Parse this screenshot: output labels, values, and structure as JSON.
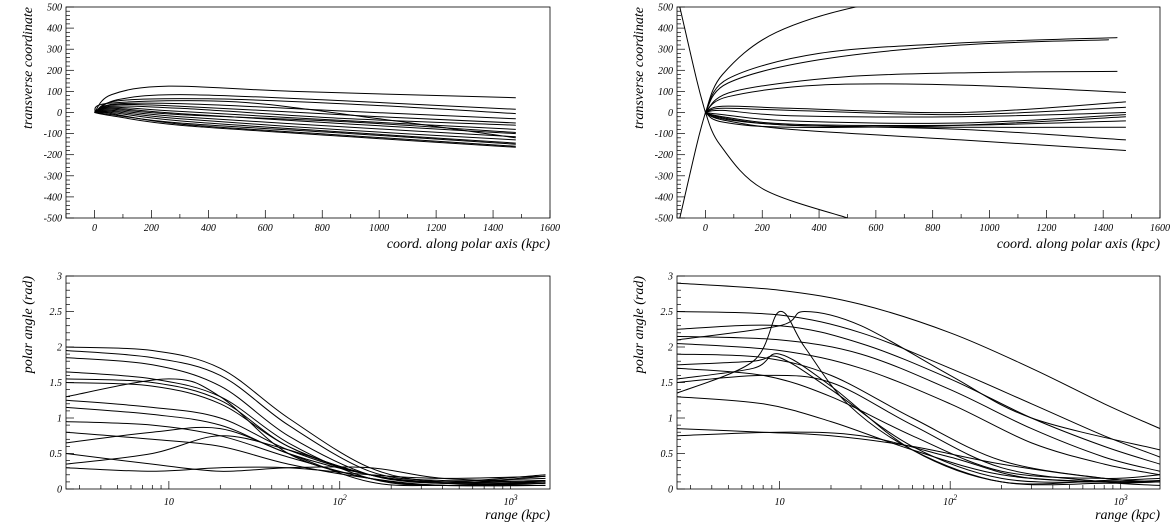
{
  "chart_data": [
    {
      "type": "line",
      "xlabel": "coord. along polar axis (kpc)",
      "ylabel": "transverse coordinate",
      "xlim": [
        -100,
        1600
      ],
      "ylim": [
        -500,
        500
      ],
      "x_ticks": [
        "0",
        "200",
        "400",
        "600",
        "800",
        "1000",
        "1200",
        "1400",
        "1600"
      ],
      "y_ticks": [
        "-500",
        "-400",
        "-300",
        "-200",
        "-100",
        "0",
        "100",
        "200",
        "300",
        "400",
        "500"
      ],
      "series": [
        {
          "x": [
            0,
            60,
            260,
            700,
            1480
          ],
          "y": [
            0,
            85,
            125,
            100,
            70
          ]
        },
        {
          "x": [
            0,
            80,
            300,
            800,
            1480
          ],
          "y": [
            0,
            60,
            85,
            60,
            15
          ]
        },
        {
          "x": [
            0,
            80,
            400,
            900,
            1480
          ],
          "y": [
            0,
            55,
            65,
            40,
            -5
          ]
        },
        {
          "x": [
            0,
            70,
            350,
            900,
            1480
          ],
          "y": [
            0,
            40,
            40,
            5,
            -30
          ]
        },
        {
          "x": [
            0,
            60,
            300,
            900,
            1480
          ],
          "y": [
            0,
            30,
            20,
            -30,
            -60
          ]
        },
        {
          "x": [
            0,
            60,
            300,
            900,
            1480
          ],
          "y": [
            0,
            25,
            5,
            -40,
            -80
          ]
        },
        {
          "x": [
            0,
            60,
            300,
            900,
            1480
          ],
          "y": [
            0,
            20,
            -5,
            -55,
            -100
          ]
        },
        {
          "x": [
            0,
            60,
            300,
            900,
            1480
          ],
          "y": [
            0,
            10,
            -20,
            -70,
            -115
          ]
        },
        {
          "x": [
            0,
            60,
            300,
            900,
            1480
          ],
          "y": [
            0,
            5,
            -30,
            -85,
            -130
          ]
        },
        {
          "x": [
            0,
            60,
            300,
            900,
            1480
          ],
          "y": [
            0,
            0,
            -40,
            -95,
            -145
          ]
        },
        {
          "x": [
            0,
            60,
            300,
            900,
            1480
          ],
          "y": [
            0,
            -5,
            -55,
            -110,
            -160
          ]
        },
        {
          "x": [
            0,
            60,
            300,
            900,
            1480
          ],
          "y": [
            0,
            -10,
            -50,
            -100,
            -150
          ]
        },
        {
          "x": [
            0,
            60,
            300,
            900,
            1480
          ],
          "y": [
            0,
            15,
            -10,
            -45,
            -95
          ]
        },
        {
          "x": [
            0,
            60,
            300,
            1000,
            1480
          ],
          "y": [
            0,
            35,
            30,
            -20,
            -50
          ]
        },
        {
          "x": [
            0,
            60,
            500,
            1000,
            1480
          ],
          "y": [
            0,
            45,
            50,
            -30,
            -120
          ]
        },
        {
          "x": [
            0,
            60,
            300,
            900,
            1480
          ],
          "y": [
            0,
            -15,
            -60,
            -115,
            -165
          ]
        }
      ]
    },
    {
      "type": "line",
      "xlabel": "coord. along polar axis (kpc)",
      "ylabel": "transverse coordinate",
      "xlim": [
        -100,
        1600
      ],
      "ylim": [
        -500,
        500
      ],
      "x_ticks": [
        "0",
        "200",
        "400",
        "600",
        "800",
        "1000",
        "1200",
        "1400",
        "1600"
      ],
      "y_ticks": [
        "-500",
        "-400",
        "-300",
        "-200",
        "-100",
        "0",
        "100",
        "200",
        "300",
        "400",
        "500"
      ],
      "series": [
        {
          "x": [
            0,
            -30,
            -90
          ],
          "y": [
            0,
            150,
            500
          ]
        },
        {
          "x": [
            0,
            -30,
            -90
          ],
          "y": [
            0,
            -150,
            -500
          ]
        },
        {
          "x": [
            0,
            60,
            250,
            600,
            1100
          ],
          "y": [
            0,
            180,
            380,
            520,
            600
          ]
        },
        {
          "x": [
            0,
            80,
            400,
            900,
            1450
          ],
          "y": [
            0,
            160,
            280,
            330,
            355
          ]
        },
        {
          "x": [
            0,
            80,
            400,
            900,
            1420
          ],
          "y": [
            0,
            140,
            250,
            320,
            345
          ]
        },
        {
          "x": [
            0,
            100,
            500,
            1000,
            1450
          ],
          "y": [
            0,
            100,
            170,
            190,
            195
          ]
        },
        {
          "x": [
            0,
            80,
            400,
            900,
            1480
          ],
          "y": [
            0,
            75,
            130,
            130,
            95
          ]
        },
        {
          "x": [
            0,
            60,
            300,
            900,
            1480
          ],
          "y": [
            0,
            30,
            20,
            0,
            50
          ]
        },
        {
          "x": [
            0,
            60,
            300,
            900,
            1480
          ],
          "y": [
            0,
            20,
            10,
            -10,
            25
          ]
        },
        {
          "x": [
            0,
            60,
            300,
            900,
            1480
          ],
          "y": [
            0,
            10,
            -15,
            -20,
            0
          ]
        },
        {
          "x": [
            0,
            60,
            300,
            900,
            1480
          ],
          "y": [
            0,
            -10,
            -40,
            -50,
            -10
          ]
        },
        {
          "x": [
            0,
            60,
            300,
            900,
            1480
          ],
          "y": [
            0,
            -20,
            -55,
            -60,
            -40
          ]
        },
        {
          "x": [
            0,
            60,
            300,
            900,
            1480
          ],
          "y": [
            0,
            -25,
            -60,
            -70,
            -70
          ]
        },
        {
          "x": [
            0,
            60,
            300,
            900,
            1480
          ],
          "y": [
            0,
            -30,
            -60,
            -80,
            -130
          ]
        },
        {
          "x": [
            0,
            60,
            300,
            900,
            1480
          ],
          "y": [
            0,
            -35,
            -80,
            -130,
            -180
          ]
        },
        {
          "x": [
            0,
            60,
            300,
            900,
            1480
          ],
          "y": [
            0,
            -45,
            -70,
            -60,
            -20
          ]
        },
        {
          "x": [
            0,
            50,
            200,
            500
          ],
          "y": [
            0,
            -150,
            -360,
            -500
          ]
        }
      ]
    },
    {
      "type": "line",
      "xlabel": "range (kpc)",
      "ylabel": "polar angle (rad)",
      "xscale": "log",
      "xlim": [
        2.5,
        1700
      ],
      "ylim": [
        0,
        3
      ],
      "x_ticks": [
        "10",
        "10^2",
        "10^3"
      ],
      "y_ticks": [
        "0",
        "0.5",
        "1",
        "1.5",
        "2",
        "2.5",
        "3"
      ],
      "series": [
        {
          "x": [
            2.5,
            8,
            20,
            50,
            150,
            400,
            1600
          ],
          "y": [
            2.0,
            1.95,
            1.7,
            1.0,
            0.3,
            0.1,
            0.1
          ]
        },
        {
          "x": [
            2.5,
            8,
            20,
            50,
            150,
            400,
            1600
          ],
          "y": [
            1.95,
            1.85,
            1.6,
            0.9,
            0.25,
            0.12,
            0.15
          ]
        },
        {
          "x": [
            2.5,
            8,
            20,
            50,
            150,
            400,
            1600
          ],
          "y": [
            1.85,
            1.75,
            1.45,
            0.75,
            0.2,
            0.1,
            0.12
          ]
        },
        {
          "x": [
            2.5,
            8,
            20,
            50,
            150,
            400,
            1600
          ],
          "y": [
            1.65,
            1.55,
            1.3,
            0.65,
            0.15,
            0.05,
            0.1
          ]
        },
        {
          "x": [
            2.5,
            8,
            20,
            50,
            150,
            400,
            1600
          ],
          "y": [
            1.55,
            1.5,
            1.25,
            0.6,
            0.2,
            0.08,
            0.18
          ]
        },
        {
          "x": [
            2.5,
            8,
            20,
            50,
            150,
            400,
            1600
          ],
          "y": [
            1.5,
            1.45,
            1.2,
            0.6,
            0.2,
            0.1,
            0.2
          ]
        },
        {
          "x": [
            2.5,
            10,
            20,
            50,
            150,
            400,
            1600
          ],
          "y": [
            1.3,
            1.55,
            1.3,
            0.5,
            0.15,
            0.05,
            0.1
          ]
        },
        {
          "x": [
            2.5,
            8,
            20,
            50,
            150,
            400,
            1600
          ],
          "y": [
            1.25,
            1.15,
            1.0,
            0.55,
            0.2,
            0.1,
            0.12
          ]
        },
        {
          "x": [
            2.5,
            8,
            20,
            50,
            150,
            400,
            1600
          ],
          "y": [
            1.15,
            1.05,
            0.9,
            0.5,
            0.2,
            0.08,
            0.1
          ]
        },
        {
          "x": [
            2.5,
            8,
            20,
            50,
            150,
            400,
            1600
          ],
          "y": [
            0.95,
            0.9,
            0.75,
            0.45,
            0.15,
            0.05,
            0.08
          ]
        },
        {
          "x": [
            2.5,
            8,
            20,
            50,
            150,
            400,
            1600
          ],
          "y": [
            0.8,
            0.7,
            0.6,
            0.35,
            0.15,
            0.05,
            0.05
          ]
        },
        {
          "x": [
            2.5,
            8,
            20,
            50,
            150,
            400,
            1600
          ],
          "y": [
            0.35,
            0.5,
            0.75,
            0.55,
            0.2,
            0.08,
            0.05
          ]
        },
        {
          "x": [
            2.5,
            8,
            20,
            50,
            150,
            400,
            1600
          ],
          "y": [
            0.3,
            0.25,
            0.3,
            0.3,
            0.2,
            0.15,
            0.18
          ]
        },
        {
          "x": [
            2.5,
            8,
            20,
            50,
            150,
            400,
            1600
          ],
          "y": [
            0.5,
            0.35,
            0.25,
            0.3,
            0.3,
            0.15,
            0.1
          ]
        },
        {
          "x": [
            2.5,
            8,
            20,
            50,
            150,
            400,
            1600
          ],
          "y": [
            0.65,
            0.8,
            0.85,
            0.5,
            0.1,
            0.05,
            0.08
          ]
        }
      ]
    },
    {
      "type": "line",
      "xlabel": "range (kpc)",
      "ylabel": "polar angle (rad)",
      "xscale": "log",
      "xlim": [
        2.5,
        1700
      ],
      "ylim": [
        0,
        3
      ],
      "x_ticks": [
        "10",
        "10^2",
        "10^3"
      ],
      "y_ticks": [
        "0",
        "0.5",
        "1",
        "1.5",
        "2",
        "2.5",
        "3"
      ],
      "series": [
        {
          "x": [
            2.5,
            10,
            30,
            100,
            300,
            800,
            1700
          ],
          "y": [
            2.9,
            2.8,
            2.6,
            2.2,
            1.7,
            1.2,
            0.85
          ]
        },
        {
          "x": [
            2.5,
            10,
            30,
            100,
            300,
            800,
            1700
          ],
          "y": [
            2.5,
            2.45,
            2.2,
            1.7,
            1.2,
            0.75,
            0.45
          ]
        },
        {
          "x": [
            2.5,
            10,
            30,
            100,
            300,
            800,
            1700
          ],
          "y": [
            2.25,
            2.3,
            2.05,
            1.55,
            1.0,
            0.6,
            0.35
          ]
        },
        {
          "x": [
            2.5,
            10,
            30,
            100,
            300,
            800,
            1700
          ],
          "y": [
            2.15,
            2.1,
            1.9,
            1.4,
            0.85,
            0.45,
            0.25
          ]
        },
        {
          "x": [
            2.5,
            10,
            30,
            100,
            300,
            800,
            1700
          ],
          "y": [
            2.05,
            1.95,
            1.7,
            1.2,
            0.65,
            0.35,
            0.2
          ]
        },
        {
          "x": [
            2.5,
            7,
            10,
            14,
            25,
            60,
            200,
            800,
            1700
          ],
          "y": [
            1.35,
            1.8,
            2.5,
            2.0,
            1.2,
            0.55,
            0.1,
            0.08,
            0.1
          ]
        },
        {
          "x": [
            2.5,
            10,
            14,
            30,
            100,
            300,
            1700
          ],
          "y": [
            2.1,
            2.3,
            2.5,
            2.3,
            1.6,
            1.0,
            0.55
          ]
        },
        {
          "x": [
            2.5,
            7,
            10,
            20,
            60,
            200,
            800,
            1700
          ],
          "y": [
            1.75,
            1.8,
            1.85,
            1.4,
            0.6,
            0.15,
            0.1,
            0.12
          ]
        },
        {
          "x": [
            2.5,
            7,
            10,
            20,
            60,
            200,
            800,
            1700
          ],
          "y": [
            1.55,
            1.7,
            1.9,
            1.45,
            0.55,
            0.1,
            0.12,
            0.15
          ]
        },
        {
          "x": [
            2.5,
            8,
            20,
            60,
            200,
            800,
            1700
          ],
          "y": [
            1.7,
            1.6,
            1.3,
            0.75,
            0.25,
            0.15,
            0.2
          ]
        },
        {
          "x": [
            2.5,
            8,
            20,
            60,
            200,
            800,
            1700
          ],
          "y": [
            1.3,
            1.2,
            0.95,
            0.55,
            0.2,
            0.1,
            0.1
          ]
        },
        {
          "x": [
            2.5,
            8,
            20,
            60,
            200,
            800,
            1700
          ],
          "y": [
            0.85,
            0.8,
            0.75,
            0.6,
            0.35,
            0.15,
            0.1
          ]
        },
        {
          "x": [
            2.5,
            10,
            30,
            100,
            300,
            1700
          ],
          "y": [
            0.75,
            0.8,
            0.75,
            0.45,
            0.15,
            0.1
          ]
        },
        {
          "x": [
            2.5,
            8,
            20,
            60,
            200,
            800,
            1700
          ],
          "y": [
            1.5,
            1.6,
            1.5,
            0.9,
            0.3,
            0.1,
            0.05
          ]
        },
        {
          "x": [
            2.5,
            8,
            20,
            60,
            200,
            800,
            1700
          ],
          "y": [
            1.9,
            1.85,
            1.6,
            1.0,
            0.4,
            0.15,
            0.1
          ]
        }
      ]
    }
  ]
}
